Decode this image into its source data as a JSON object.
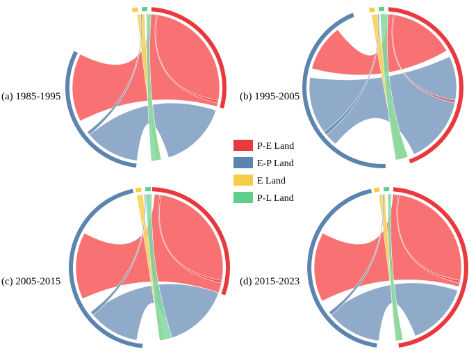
{
  "panels": [
    {
      "label": "(a) 1985-1995"
    },
    {
      "label": "(b) 1995-2005"
    },
    {
      "label": "(c) 2005-2015"
    },
    {
      "label": "(d) 2015-2023"
    }
  ],
  "legend": [
    {
      "label": "P-E Land",
      "color": "#e8393f"
    },
    {
      "label": "E-P Land",
      "color": "#5b84ae"
    },
    {
      "label": "E Land",
      "color": "#f5cc45"
    },
    {
      "label": "P-L Land",
      "color": "#5fcd8c"
    }
  ],
  "colors": {
    "pe_ribbon": "#f86a6c",
    "ep_ribbon": "#8aa7c7",
    "e_ribbon": "#f8d460",
    "pl_ribbon": "#7fd8a3"
  }
}
